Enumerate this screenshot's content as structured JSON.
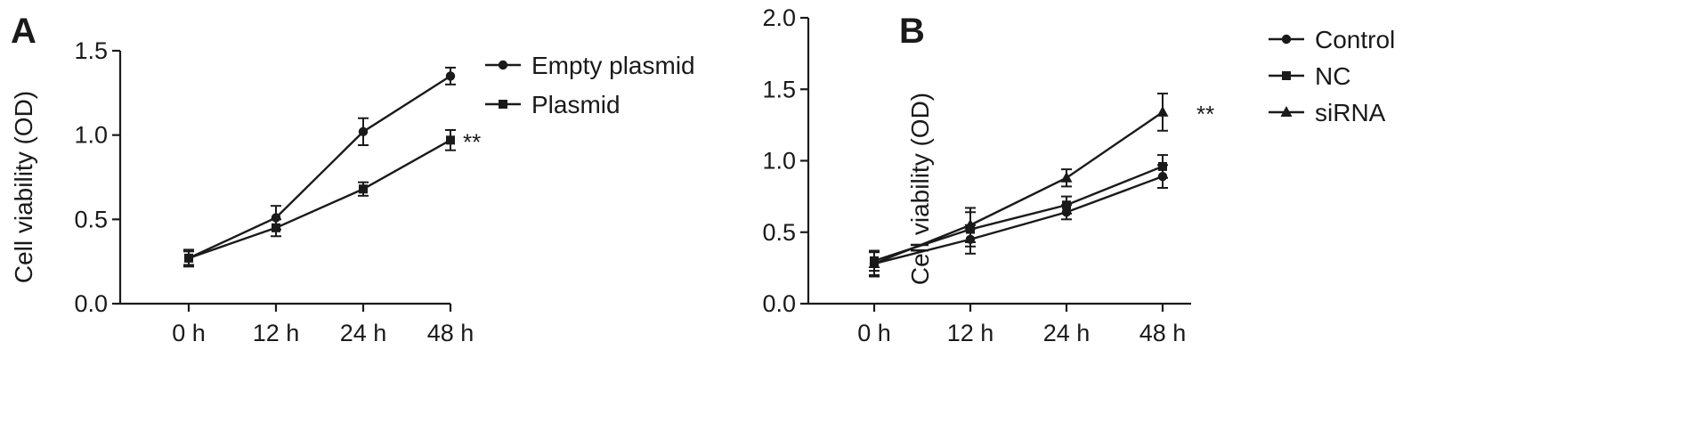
{
  "chart_data": [
    {
      "panel": "A",
      "type": "line",
      "categories": [
        "0 h",
        "12 h",
        "24 h",
        "48 h"
      ],
      "ylabel": "Cell viability (OD)",
      "xlabel": "",
      "ylim": [
        0,
        1.5
      ],
      "yticks": [
        "0.0",
        "0.5",
        "1.0",
        "1.5"
      ],
      "grid": false,
      "legend_position": "right",
      "series": [
        {
          "name": "Empty plasmid",
          "marker": "circle",
          "values": [
            0.27,
            0.51,
            1.02,
            1.35
          ],
          "errors": [
            0.05,
            0.07,
            0.08,
            0.05
          ]
        },
        {
          "name": "Plasmid",
          "marker": "square",
          "values": [
            0.27,
            0.45,
            0.68,
            0.97
          ],
          "errors": [
            0.04,
            0.05,
            0.04,
            0.06
          ]
        }
      ],
      "annotations": [
        {
          "text": "**",
          "series": "Plasmid",
          "category": "48 h"
        }
      ]
    },
    {
      "panel": "B",
      "type": "line",
      "categories": [
        "0 h",
        "12 h",
        "24 h",
        "48 h"
      ],
      "ylabel": "Cell viability (OD)",
      "xlabel": "",
      "ylim": [
        0,
        2.0
      ],
      "yticks": [
        "0.0",
        "0.5",
        "1.0",
        "1.5",
        "2.0"
      ],
      "grid": false,
      "legend_position": "top-right",
      "series": [
        {
          "name": "Control",
          "marker": "circle",
          "values": [
            0.28,
            0.45,
            0.64,
            0.89
          ],
          "errors": [
            0.09,
            0.1,
            0.05,
            0.08
          ]
        },
        {
          "name": "NC",
          "marker": "square",
          "values": [
            0.3,
            0.52,
            0.69,
            0.96
          ],
          "errors": [
            0.07,
            0.12,
            0.06,
            0.08
          ]
        },
        {
          "name": "siRNA",
          "marker": "triangle",
          "values": [
            0.28,
            0.55,
            0.88,
            1.34
          ],
          "errors": [
            0.08,
            0.12,
            0.06,
            0.13
          ]
        }
      ],
      "annotations": [
        {
          "text": "**",
          "series": "siRNA",
          "category": "48 h"
        }
      ]
    }
  ]
}
